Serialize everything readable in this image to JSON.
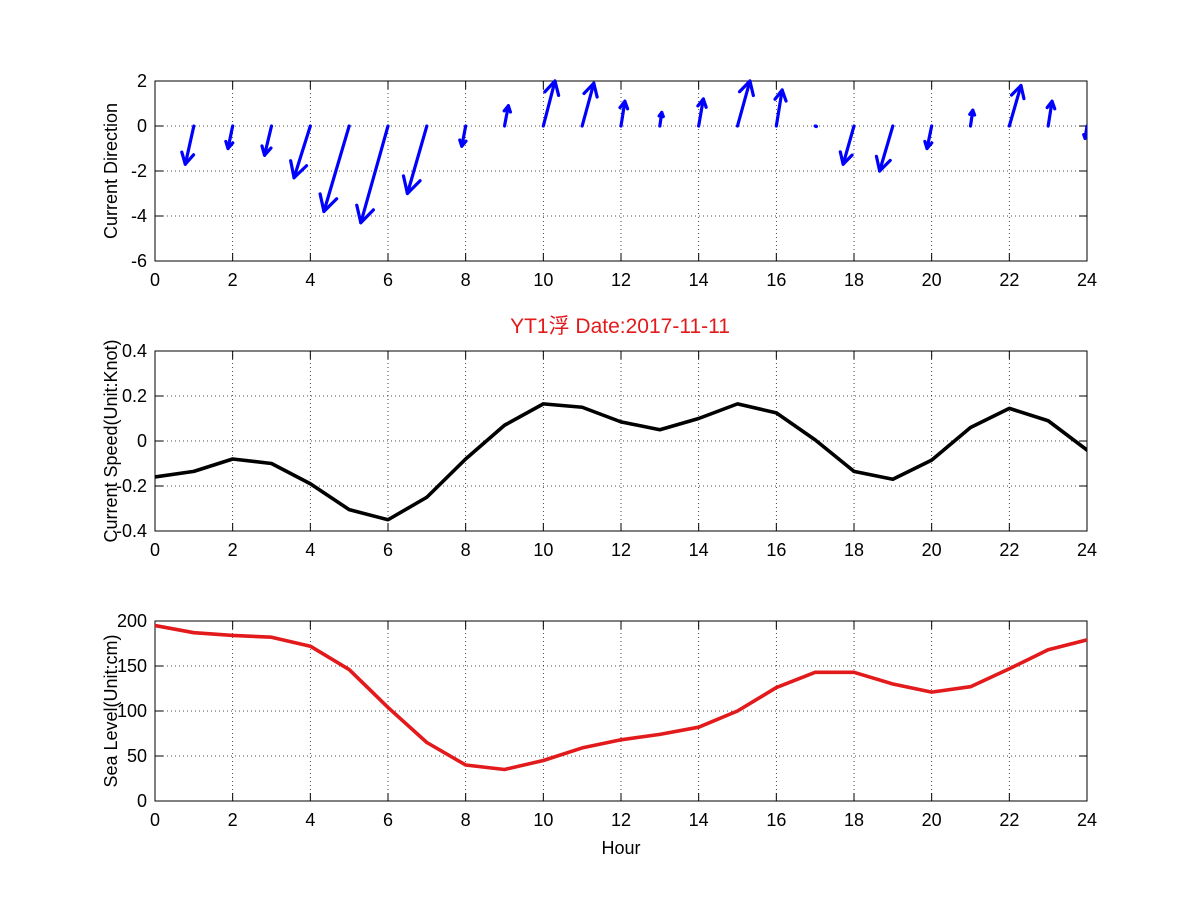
{
  "title": "YT1浮    Date:2017-11-11",
  "colors": {
    "title": "#e31a1c",
    "direction": "#0000ff",
    "speed": "#000000",
    "sea_level": "#e31a1c"
  },
  "chart_data": [
    {
      "type": "quiver",
      "ylabel": "Current Direction",
      "xlabel": "",
      "xlim": [
        0,
        24
      ],
      "ylim": [
        -6,
        2
      ],
      "xticks": [
        0,
        2,
        4,
        6,
        8,
        10,
        12,
        14,
        16,
        18,
        20,
        22,
        24
      ],
      "yticks": [
        -6,
        -4,
        -2,
        0,
        2
      ],
      "grid": true,
      "vectors": [
        {
          "x": 1,
          "u": -0.22,
          "v": -1.7
        },
        {
          "x": 2,
          "u": -0.12,
          "v": -1.0
        },
        {
          "x": 3,
          "u": -0.18,
          "v": -1.3
        },
        {
          "x": 4,
          "u": -0.42,
          "v": -2.3
        },
        {
          "x": 5,
          "u": -0.65,
          "v": -3.8
        },
        {
          "x": 6,
          "u": -0.7,
          "v": -4.3
        },
        {
          "x": 7,
          "u": -0.5,
          "v": -3.0
        },
        {
          "x": 8,
          "u": -0.1,
          "v": -0.9
        },
        {
          "x": 9,
          "u": 0.1,
          "v": 0.9
        },
        {
          "x": 10,
          "u": 0.3,
          "v": 2.0
        },
        {
          "x": 11,
          "u": 0.3,
          "v": 1.9
        },
        {
          "x": 12,
          "u": 0.1,
          "v": 1.1
        },
        {
          "x": 13,
          "u": 0.05,
          "v": 0.6
        },
        {
          "x": 14,
          "u": 0.12,
          "v": 1.2
        },
        {
          "x": 15,
          "u": 0.32,
          "v": 2.0
        },
        {
          "x": 16,
          "u": 0.15,
          "v": 1.6
        },
        {
          "x": 17,
          "u": 0.03,
          "v": -0.02
        },
        {
          "x": 18,
          "u": -0.28,
          "v": -1.7
        },
        {
          "x": 19,
          "u": -0.34,
          "v": -2.0
        },
        {
          "x": 20,
          "u": -0.12,
          "v": -1.0
        },
        {
          "x": 21,
          "u": 0.06,
          "v": 0.7
        },
        {
          "x": 22,
          "u": 0.3,
          "v": 1.8
        },
        {
          "x": 23,
          "u": 0.1,
          "v": 1.1
        },
        {
          "x": 24,
          "u": -0.05,
          "v": -0.55
        }
      ]
    },
    {
      "type": "line",
      "ylabel": "Current Speed(Unit:Knot)",
      "xlabel": "",
      "xlim": [
        0,
        24
      ],
      "ylim": [
        -0.4,
        0.4
      ],
      "xticks": [
        0,
        2,
        4,
        6,
        8,
        10,
        12,
        14,
        16,
        18,
        20,
        22,
        24
      ],
      "yticks": [
        -0.4,
        -0.2,
        0,
        0.2,
        0.4
      ],
      "ytick_labels": [
        "-0.4",
        "-0.2",
        "0",
        "0.2",
        "0.4"
      ],
      "grid": true,
      "x": [
        0,
        1,
        2,
        3,
        4,
        5,
        6,
        7,
        8,
        9,
        10,
        11,
        12,
        13,
        14,
        15,
        16,
        17,
        18,
        19,
        20,
        21,
        22,
        23,
        24
      ],
      "y": [
        -0.16,
        -0.135,
        -0.08,
        -0.1,
        -0.19,
        -0.305,
        -0.35,
        -0.25,
        -0.08,
        0.07,
        0.165,
        0.15,
        0.085,
        0.05,
        0.1,
        0.165,
        0.125,
        0.005,
        -0.135,
        -0.17,
        -0.085,
        0.06,
        0.145,
        0.09,
        -0.04
      ]
    },
    {
      "type": "line",
      "ylabel": "Sea Level(Unit:cm)",
      "xlabel": "Hour",
      "xlim": [
        0,
        24
      ],
      "ylim": [
        0,
        200
      ],
      "xticks": [
        0,
        2,
        4,
        6,
        8,
        10,
        12,
        14,
        16,
        18,
        20,
        22,
        24
      ],
      "yticks": [
        0,
        50,
        100,
        150,
        200
      ],
      "grid": true,
      "x": [
        0,
        1,
        2,
        3,
        4,
        5,
        6,
        7,
        8,
        9,
        10,
        11,
        12,
        13,
        14,
        15,
        16,
        17,
        18,
        19,
        20,
        21,
        22,
        23,
        24
      ],
      "y": [
        195,
        187,
        184,
        182,
        172,
        146,
        104,
        65,
        40,
        35,
        45,
        59,
        68,
        74,
        82,
        100,
        126,
        143,
        143,
        130,
        121,
        127,
        147,
        168,
        179
      ]
    }
  ]
}
